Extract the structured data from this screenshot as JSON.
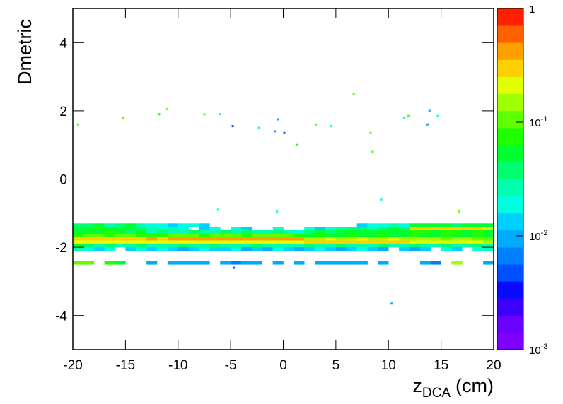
{
  "chart_data": {
    "type": "heatmap",
    "ylabel": "Dmetric",
    "xlabel": {
      "text": "z",
      "sub": "DCA",
      "unit": "(cm)"
    },
    "xlim": [
      -20,
      20
    ],
    "xticks": [
      -20,
      -15,
      -10,
      -5,
      0,
      5,
      10,
      15,
      20
    ],
    "ylim": [
      -5,
      5
    ],
    "yticks": [
      -4,
      -2,
      0,
      2,
      4
    ],
    "zlim": [
      0.001,
      1
    ],
    "zscale": "log",
    "zticks": [
      {
        "value": 1,
        "label": "1"
      },
      {
        "value": 0.1,
        "label": "10",
        "exponent": "-1"
      },
      {
        "value": 0.01,
        "label": "10",
        "exponent": "-2"
      },
      {
        "value": 0.001,
        "label": "10",
        "exponent": "-3"
      }
    ],
    "palette": [
      "#7f00ff",
      "#6a00ff",
      "#3c00ff",
      "#0a0aff",
      "#0050ff",
      "#0080ff",
      "#00aaff",
      "#00d0ff",
      "#00ffe0",
      "#00ffb0",
      "#00ff70",
      "#00ff30",
      "#20ff00",
      "#60ff00",
      "#a0ff00",
      "#e0ff00",
      "#ffd000",
      "#ffa000",
      "#ff6000",
      "#ff2000"
    ],
    "xbin_width": 1,
    "ybin_width": 0.1,
    "rows": [
      {
        "y": -1.35,
        "values": [
          0.04,
          0.04,
          0.05,
          0.03,
          0.04,
          0.05,
          0.03,
          0.02,
          0.02,
          0.015,
          0.02,
          0.02,
          0.015,
          null,
          null,
          null,
          null,
          null,
          null,
          null,
          null,
          null,
          null,
          null,
          null,
          null,
          null,
          0.015,
          0.02,
          0.02,
          0.03,
          0.02,
          0.05,
          0.06,
          0.05,
          0.05,
          0.04,
          0.05,
          0.06,
          0.05
        ]
      },
      {
        "y": -1.45,
        "values": [
          0.06,
          0.05,
          0.07,
          0.06,
          0.05,
          0.06,
          0.04,
          0.03,
          0.02,
          0.03,
          0.02,
          null,
          0.015,
          0.02,
          null,
          0.02,
          0.015,
          null,
          null,
          0.02,
          null,
          null,
          0.02,
          0.015,
          0.02,
          0.03,
          0.04,
          0.04,
          0.03,
          0.04,
          0.05,
          0.04,
          0.3,
          0.35,
          0.3,
          0.3,
          0.35,
          0.3,
          0.3,
          0.25
        ]
      },
      {
        "y": -1.55,
        "values": [
          0.05,
          0.06,
          0.05,
          0.07,
          0.06,
          0.04,
          0.05,
          0.03,
          0.04,
          0.03,
          0.03,
          0.04,
          0.03,
          0.03,
          0.04,
          0.03,
          0.04,
          0.03,
          0.03,
          0.04,
          0.03,
          0.02,
          0.04,
          0.05,
          0.04,
          0.06,
          0.05,
          0.05,
          0.06,
          0.05,
          0.06,
          0.05,
          0.08,
          0.07,
          0.06,
          0.07,
          0.08,
          0.06,
          0.07,
          0.05
        ]
      },
      {
        "y": -1.65,
        "values": [
          0.08,
          0.1,
          0.09,
          0.08,
          0.1,
          0.09,
          0.08,
          0.07,
          0.08,
          0.09,
          0.1,
          0.09,
          0.08,
          0.09,
          0.1,
          0.09,
          0.08,
          0.09,
          0.1,
          0.09,
          0.1,
          0.08,
          0.06,
          0.07,
          0.06,
          0.06,
          0.07,
          0.06,
          0.06,
          0.07,
          0.06,
          0.06,
          0.07,
          0.06,
          0.06,
          0.07,
          0.06,
          0.06,
          0.07,
          0.05
        ]
      },
      {
        "y": -1.75,
        "values": [
          0.3,
          0.35,
          0.3,
          0.3,
          0.35,
          0.3,
          0.35,
          0.4,
          0.35,
          0.4,
          0.45,
          0.4,
          0.4,
          0.45,
          0.4,
          0.45,
          0.5,
          0.45,
          0.5,
          0.45,
          0.5,
          0.45,
          0.15,
          0.15,
          0.18,
          0.15,
          0.15,
          0.18,
          0.15,
          0.15,
          0.18,
          0.15,
          0.15,
          0.15,
          0.15,
          0.12,
          0.15,
          0.15,
          0.12,
          0.1
        ]
      },
      {
        "y": -1.85,
        "values": [
          0.2,
          0.25,
          0.2,
          0.2,
          0.25,
          0.2,
          0.2,
          0.2,
          0.25,
          0.2,
          0.2,
          0.2,
          0.25,
          0.2,
          0.2,
          0.2,
          0.2,
          0.25,
          0.2,
          0.2,
          0.2,
          0.2,
          0.3,
          0.3,
          0.35,
          0.3,
          0.3,
          0.35,
          0.3,
          0.3,
          0.3,
          0.3,
          0.25,
          0.25,
          0.2,
          0.2,
          0.25,
          0.2,
          0.2,
          0.15
        ]
      },
      {
        "y": -1.95,
        "values": [
          0.05,
          0.04,
          0.03,
          0.04,
          0.03,
          0.03,
          0.04,
          0.03,
          0.03,
          0.03,
          0.04,
          0.03,
          0.03,
          0.04,
          0.03,
          0.03,
          0.03,
          0.04,
          0.03,
          0.03,
          0.03,
          0.03,
          0.04,
          0.03,
          0.03,
          0.04,
          0.03,
          0.03,
          0.03,
          0.04,
          0.03,
          0.03,
          0.04,
          0.03,
          0.03,
          0.04,
          0.03,
          0.03,
          0.04,
          0.03
        ]
      },
      {
        "y": -2.05,
        "values": [
          0.03,
          0.02,
          0.015,
          0.02,
          null,
          0.015,
          0.02,
          0.015,
          0.02,
          0.015,
          0.01,
          0.015,
          0.02,
          0.015,
          0.015,
          0.02,
          0.01,
          0.015,
          0.01,
          0.02,
          0.015,
          0.01,
          0.015,
          0.02,
          0.015,
          0.01,
          0.015,
          0.02,
          0.015,
          0.01,
          null,
          0.015,
          0.01,
          0.015,
          null,
          0.02,
          0.015,
          null,
          0.02,
          0.03
        ]
      },
      {
        "y": -2.45,
        "values": [
          0.1,
          0.1,
          null,
          0.08,
          0.06,
          null,
          null,
          0.01,
          null,
          0.008,
          0.01,
          0.008,
          0.01,
          null,
          0.008,
          0.006,
          0.01,
          0.008,
          null,
          0.008,
          null,
          0.01,
          null,
          0.008,
          0.01,
          0.008,
          0.01,
          0.008,
          null,
          0.01,
          null,
          null,
          null,
          0.008,
          0.006,
          null,
          0.15,
          null,
          null,
          0.01
        ]
      }
    ],
    "points": [
      [
        -19.5,
        1.6,
        0.1
      ],
      [
        -15.2,
        1.8,
        0.1
      ],
      [
        -11.8,
        1.9,
        0.08
      ],
      [
        -11.1,
        2.05,
        0.1
      ],
      [
        -7.5,
        1.9,
        0.1
      ],
      [
        -6,
        1.9,
        0.02
      ],
      [
        -4.8,
        1.55,
        0.005
      ],
      [
        -2.3,
        1.5,
        0.02
      ],
      [
        -0.5,
        1.75,
        0.01
      ],
      [
        -0.8,
        1.4,
        0.01
      ],
      [
        0.1,
        1.35,
        0.005
      ],
      [
        1.3,
        1.0,
        0.08
      ],
      [
        3.1,
        1.6,
        0.1
      ],
      [
        4.5,
        1.55,
        0.02
      ],
      [
        6.7,
        2.5,
        0.1
      ],
      [
        8.3,
        1.35,
        0.1
      ],
      [
        8.5,
        0.8,
        0.1
      ],
      [
        11.5,
        1.8,
        0.02
      ],
      [
        11.9,
        1.85,
        0.1
      ],
      [
        13.9,
        2.0,
        0.01
      ],
      [
        13.7,
        1.6,
        0.01
      ],
      [
        14.7,
        1.85,
        0.02
      ],
      [
        -6.2,
        -0.9,
        0.02
      ],
      [
        -0.6,
        -0.95,
        0.02
      ],
      [
        9.3,
        -0.6,
        0.02
      ],
      [
        16.7,
        -0.95,
        0.1
      ],
      [
        -4.7,
        -2.6,
        0.005
      ],
      [
        10.3,
        -3.65,
        0.01
      ]
    ]
  }
}
